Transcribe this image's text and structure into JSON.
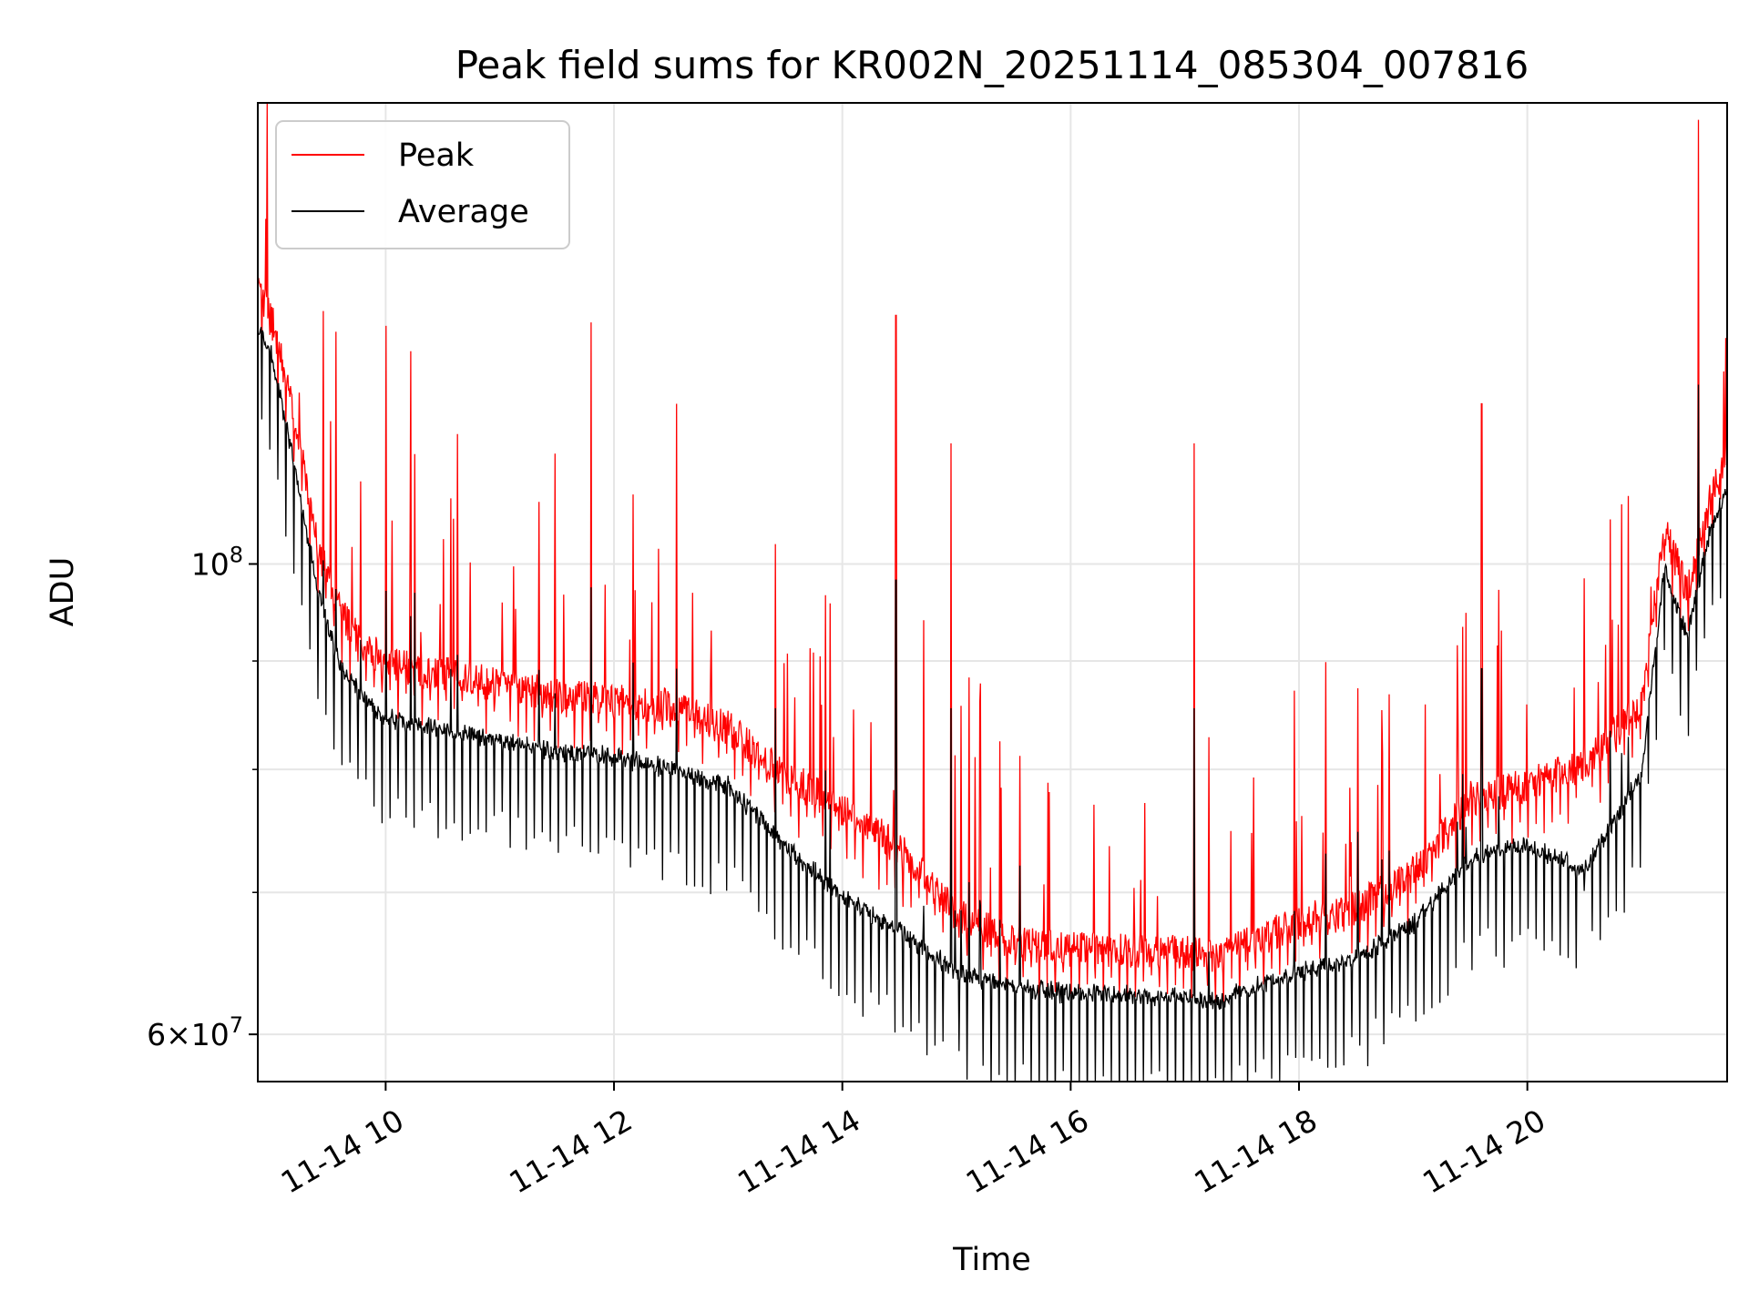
{
  "chart_data": {
    "type": "line",
    "title": "Peak field sums for KR002N_20251114_085304_007816",
    "xlabel": "Time",
    "ylabel": "ADU",
    "yscale": "log",
    "ylim": [
      57000000,
      165000000
    ],
    "xlim_hours": [
      8.88,
      21.75
    ],
    "x_tick_labels": [
      "11-14 10",
      "11-14 12",
      "11-14 14",
      "11-14 16",
      "11-14 18",
      "11-14 20"
    ],
    "x_tick_hours": [
      10,
      12,
      14,
      16,
      18,
      20
    ],
    "y_major_ticks": [
      {
        "value": 100000000,
        "label_base": "10",
        "label_exp": "8"
      },
      {
        "value": 60000000,
        "label_base": "6×10",
        "label_exp": "7"
      }
    ],
    "y_minor_ticks": [
      70000000,
      80000000,
      90000000
    ],
    "grid": true,
    "legend_position": "upper left",
    "series": [
      {
        "name": "Peak",
        "color": "#ff0000",
        "hours": [
          8.88,
          9.0,
          9.2,
          9.4,
          9.6,
          9.8,
          10.0,
          10.5,
          11.0,
          11.5,
          12.0,
          12.5,
          13.0,
          13.5,
          14.0,
          14.5,
          15.0,
          15.5,
          16.0,
          16.5,
          17.0,
          17.3,
          17.6,
          18.0,
          18.5,
          19.0,
          19.5,
          20.0,
          20.5,
          21.0,
          21.2,
          21.4,
          21.6,
          21.75
        ],
        "values": [
          132000000,
          128000000,
          115000000,
          100000000,
          93000000,
          90000000,
          88000000,
          87000000,
          86000000,
          85000000,
          84500000,
          84000000,
          82000000,
          78000000,
          75000000,
          72000000,
          67000000,
          65000000,
          64500000,
          64500000,
          64300000,
          64000000,
          65000000,
          66500000,
          67500000,
          70000000,
          76000000,
          77000000,
          79000000,
          84000000,
          102000000,
          95000000,
          105000000,
          110000000
        ]
      },
      {
        "name": "Average",
        "color": "#000000",
        "hours": [
          8.88,
          9.0,
          9.2,
          9.4,
          9.6,
          9.8,
          10.0,
          10.5,
          11.0,
          11.5,
          12.0,
          12.5,
          13.0,
          13.5,
          14.0,
          14.5,
          15.0,
          15.5,
          16.0,
          16.5,
          17.0,
          17.3,
          17.6,
          18.0,
          18.5,
          19.0,
          19.5,
          20.0,
          20.5,
          21.0,
          21.2,
          21.4,
          21.6,
          21.75
        ],
        "values": [
          130000000,
          126000000,
          112000000,
          98000000,
          90000000,
          87000000,
          85000000,
          84000000,
          83000000,
          82000000,
          81500000,
          80500000,
          79000000,
          74000000,
          70000000,
          67500000,
          64500000,
          63500000,
          63000000,
          63000000,
          62800000,
          62500000,
          63500000,
          64500000,
          65500000,
          68000000,
          73000000,
          74000000,
          72000000,
          80000000,
          100000000,
          93000000,
          104000000,
          109000000
        ]
      }
    ],
    "notable_spikes": [
      {
        "hours": 8.96,
        "peak": 165000000
      },
      {
        "hours": 10.22,
        "peak": 126000000
      },
      {
        "hours": 11.8,
        "peak": 130000000
      },
      {
        "hours": 12.55,
        "peak": 119000000
      },
      {
        "hours": 14.47,
        "peak": 131000000
      },
      {
        "hours": 14.95,
        "peak": 114000000
      },
      {
        "hours": 17.08,
        "peak": 114000000
      },
      {
        "hours": 19.6,
        "peak": 119000000
      },
      {
        "hours": 21.5,
        "peak": 162000000
      }
    ]
  }
}
